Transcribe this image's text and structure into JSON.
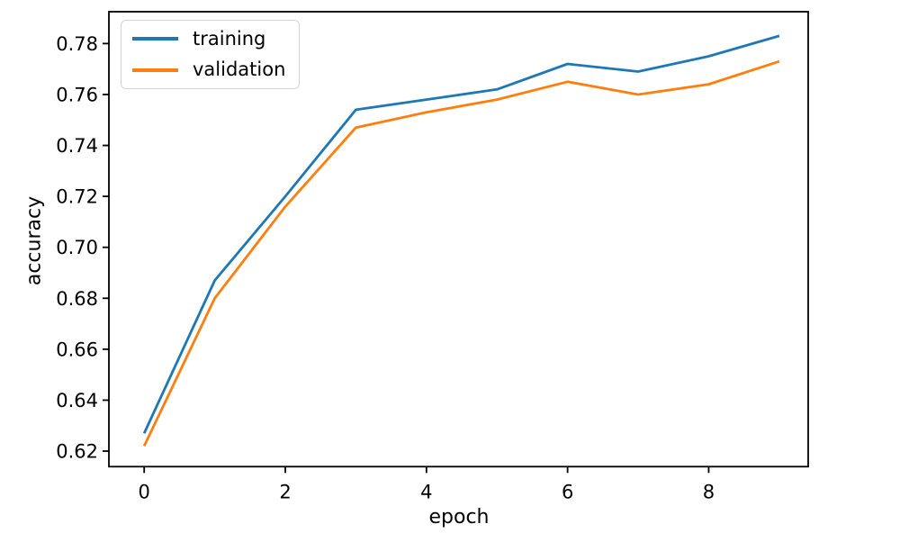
{
  "chart_data": {
    "type": "line",
    "title": "",
    "xlabel": "epoch",
    "ylabel": "accuracy",
    "x": [
      0,
      1,
      2,
      3,
      4,
      5,
      6,
      7,
      8,
      9
    ],
    "series": [
      {
        "name": "training",
        "color": "#1f77b4",
        "values": [
          0.627,
          0.687,
          0.72,
          0.754,
          0.758,
          0.762,
          0.772,
          0.769,
          0.775,
          0.783
        ]
      },
      {
        "name": "validation",
        "color": "#ff7f0e",
        "values": [
          0.622,
          0.68,
          0.716,
          0.747,
          0.753,
          0.758,
          0.765,
          0.76,
          0.764,
          0.773
        ]
      }
    ],
    "xticks": [
      0,
      2,
      4,
      6,
      8
    ],
    "yticks": [
      0.62,
      0.64,
      0.66,
      0.68,
      0.7,
      0.72,
      0.74,
      0.76,
      0.78
    ],
    "xlim": [
      -0.5,
      9.41
    ],
    "ylim": [
      0.6139,
      0.7925
    ],
    "grid": false,
    "legend_position": "upper left"
  }
}
